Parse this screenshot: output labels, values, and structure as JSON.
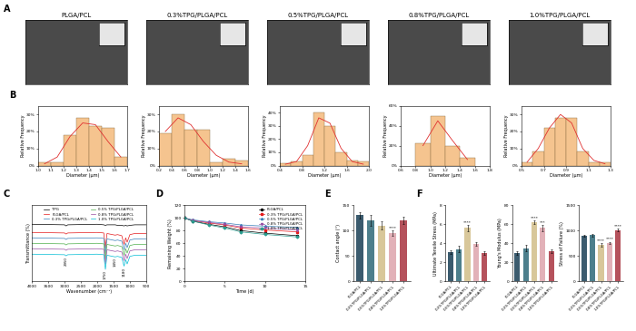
{
  "chart_data": [
    {
      "type": "image",
      "panel": "A",
      "title": "PLGA/PCL"
    },
    {
      "type": "image",
      "title": "0.3%TPG/PLGA/PCL"
    },
    {
      "type": "image",
      "title": "0.5%TPG/PLGA/PCL"
    },
    {
      "type": "image",
      "title": "0.8%TPG/PLGA/PCL"
    },
    {
      "type": "image",
      "title": "1.0%TPG/PLGA/PCL"
    },
    {
      "type": "histogram",
      "panel": "B",
      "x_label": "Diameter (μm)",
      "y_label": "Relative Frequency",
      "color": "#f5c48f",
      "bins": [
        1.0,
        1.1,
        1.2,
        1.3,
        1.4,
        1.5,
        1.6,
        1.7
      ],
      "counts": [
        2,
        2,
        18,
        28,
        23,
        22,
        5
      ],
      "fit": [
        1,
        5,
        17,
        25,
        24,
        14,
        5
      ],
      "xlim": [
        1.0,
        1.7
      ],
      "xticks": [
        1.0,
        1.1,
        1.2,
        1.3,
        1.4,
        1.5,
        1.6,
        1.7
      ],
      "ylim": [
        0,
        35
      ],
      "yticks": [
        {
          "value": 0,
          "label": "0%"
        },
        {
          "value": 10,
          "label": "10%"
        },
        {
          "value": 20,
          "label": "20%"
        },
        {
          "value": 30,
          "label": "30%"
        }
      ],
      "grid": false
    },
    {
      "type": "histogram",
      "x_label": "Diameter (μm)",
      "y_label": "Relative Frequency",
      "color": "#f5c48f",
      "bins": [
        0.2,
        0.4,
        0.6,
        0.8,
        1.0,
        1.2,
        1.4,
        1.6
      ],
      "counts": [
        19,
        30,
        21,
        21,
        2,
        4,
        3
      ],
      "fit": [
        20,
        28,
        24,
        14,
        6,
        2,
        1
      ],
      "xlim": [
        0.2,
        1.6
      ],
      "xticks": [
        0.2,
        0.4,
        0.6,
        0.8,
        1.0,
        1.2,
        1.4,
        1.6
      ],
      "ylim": [
        0,
        35
      ],
      "yticks": [
        {
          "value": 0,
          "label": "0%"
        },
        {
          "value": 10,
          "label": "10%"
        },
        {
          "value": 20,
          "label": "20%"
        },
        {
          "value": 30,
          "label": "30%"
        }
      ],
      "grid": false
    },
    {
      "type": "histogram",
      "x_label": "Diameter (μm)",
      "y_label": "Relative Frequency",
      "color": "#f5c48f",
      "bins": [
        0.4,
        0.6,
        0.8,
        1.0,
        1.2,
        1.4,
        1.6,
        1.8,
        2.0
      ],
      "counts": [
        2,
        3,
        8,
        40,
        30,
        10,
        4,
        3
      ],
      "fit": [
        1,
        3,
        15,
        36,
        32,
        13,
        3,
        1
      ],
      "xlim": [
        0.4,
        2.0
      ],
      "xticks": [
        0.4,
        0.8,
        1.2,
        1.6,
        2.0
      ],
      "ylim": [
        0,
        45
      ],
      "yticks": [
        {
          "value": 0,
          "label": "0%"
        },
        {
          "value": 10,
          "label": "10%"
        },
        {
          "value": 20,
          "label": "20%"
        },
        {
          "value": 30,
          "label": "30%"
        },
        {
          "value": 40,
          "label": "40%"
        }
      ],
      "grid": false
    },
    {
      "type": "histogram",
      "x_label": "Diameter (μm)",
      "y_label": "Relative Frequency",
      "color": "#f5c48f",
      "bins": [
        0.8,
        1.0,
        1.2,
        1.4,
        1.6
      ],
      "counts": [
        22,
        50,
        20,
        8
      ],
      "fit": [
        20,
        45,
        25,
        6
      ],
      "xlim": [
        0.6,
        1.8
      ],
      "xticks": [
        0.6,
        0.8,
        1.0,
        1.2,
        1.4,
        1.6,
        1.8
      ],
      "ylim": [
        0,
        60
      ],
      "yticks": [
        {
          "value": 0,
          "label": "0%"
        },
        {
          "value": 20,
          "label": "20%"
        },
        {
          "value": 40,
          "label": "40%"
        },
        {
          "value": 60,
          "label": "60%"
        }
      ],
      "grid": false
    },
    {
      "type": "histogram",
      "x_label": "Diameter (μm)",
      "y_label": "Relative Frequency",
      "color": "#f5c48f",
      "bins": [
        0.5,
        0.6,
        0.7,
        0.8,
        0.9,
        1.0,
        1.1,
        1.2,
        1.3
      ],
      "counts": [
        2,
        8,
        22,
        28,
        28,
        8,
        2,
        2
      ],
      "fit": [
        2,
        10,
        22,
        30,
        25,
        10,
        3,
        1
      ],
      "xlim": [
        0.5,
        1.3
      ],
      "xticks": [
        0.5,
        0.7,
        0.9,
        1.1,
        1.3
      ],
      "ylim": [
        0,
        35
      ],
      "yticks": [
        {
          "value": 0,
          "label": "0%"
        },
        {
          "value": 10,
          "label": "10%"
        },
        {
          "value": 20,
          "label": "20%"
        },
        {
          "value": 30,
          "label": "30%"
        }
      ],
      "grid": false
    },
    {
      "type": "line",
      "panel": "C",
      "x_label": "Wavenumber (cm⁻¹)",
      "y_label": "Transmittance (%)",
      "x": [
        4000,
        3000,
        2950,
        2900,
        2000,
        1800,
        1750,
        1700,
        1450,
        1380,
        1250,
        1180,
        1130,
        1085,
        1000,
        850,
        700,
        500
      ],
      "series": [
        {
          "name": "TPG",
          "color": "#000000",
          "values": [
            105,
            104,
            102,
            104,
            105,
            104,
            103,
            104,
            104,
            103,
            103,
            102,
            103,
            102,
            103,
            104,
            104,
            104
          ]
        },
        {
          "name": "PLGA/PCL",
          "color": "#e41a1c",
          "values": [
            90,
            89,
            87,
            89,
            90,
            89,
            62,
            88,
            85,
            86,
            84,
            68,
            80,
            72,
            86,
            88,
            88,
            88
          ]
        },
        {
          "name": "0.3% TPG/PLGA/PCL",
          "color": "#377eb8",
          "values": [
            80,
            79,
            77,
            79,
            80,
            79,
            52,
            78,
            75,
            76,
            74,
            58,
            70,
            62,
            76,
            78,
            78,
            78
          ]
        },
        {
          "name": "0.5% TPG/PLGA/PCL",
          "color": "#4daf4a",
          "values": [
            70,
            69,
            67,
            69,
            70,
            69,
            42,
            68,
            65,
            66,
            64,
            48,
            60,
            52,
            66,
            68,
            68,
            68
          ]
        },
        {
          "name": "0.8% TPG/PLGA/PCL",
          "color": "#984ea3",
          "values": [
            60,
            59,
            57,
            59,
            60,
            59,
            32,
            58,
            55,
            56,
            54,
            38,
            50,
            42,
            56,
            58,
            58,
            58
          ]
        },
        {
          "name": "1.0% TPG/PLGA/PCL",
          "color": "#00bcd4",
          "values": [
            50,
            49,
            47,
            49,
            50,
            49,
            22,
            48,
            45,
            46,
            44,
            28,
            40,
            32,
            46,
            48,
            48,
            48
          ]
        }
      ],
      "annotations": [
        {
          "text": "2950",
          "x": 2950
        },
        {
          "text": "1750",
          "x": 1750
        },
        {
          "text": "1450",
          "x": 1450
        },
        {
          "text": "1180",
          "x": 1180
        }
      ],
      "xlim": [
        4000,
        500
      ],
      "xticks": [
        4000,
        3500,
        3000,
        2500,
        2000,
        1500,
        1000,
        500
      ],
      "ylim": [
        0,
        140
      ],
      "tick_labels": "x",
      "legend": "upper center",
      "grid": false
    },
    {
      "type": "line",
      "panel": "D",
      "x_label": "Time (d)",
      "y_label": "Remaining Weight (%)",
      "x": [
        0,
        1,
        3,
        5,
        7,
        10,
        14
      ],
      "series": [
        {
          "name": "PLGA/PCL",
          "color": "#000000",
          "marker": "circle",
          "values": [
            100,
            95,
            90,
            86,
            80,
            76,
            72
          ]
        },
        {
          "name": "0.3% TPG/PLGA/PCL",
          "color": "#e41a1c",
          "marker": "square",
          "values": [
            100,
            96,
            92,
            89,
            84,
            81,
            78
          ]
        },
        {
          "name": "0.5% TPG/PLGA/PCL",
          "color": "#377eb8",
          "marker": "triangle_up",
          "values": [
            100,
            97,
            94,
            92,
            89,
            87,
            85
          ]
        },
        {
          "name": "0.8% TPG/PLGA/PCL",
          "color": "#984ea3",
          "marker": "triangle_down",
          "values": [
            100,
            96,
            93,
            90,
            86,
            84,
            81
          ]
        },
        {
          "name": "1.0% TPG/PLGA/PCL",
          "color": "#2a9d8f",
          "marker": "diamond",
          "values": [
            100,
            95,
            89,
            84,
            78,
            74,
            70
          ]
        }
      ],
      "xlim": [
        0,
        15
      ],
      "xticks": [
        0,
        5,
        10,
        15
      ],
      "ylim": [
        0,
        120
      ],
      "yticks": [
        0,
        20,
        40,
        60,
        80,
        100,
        120
      ],
      "legend": "upper right",
      "grid": false
    },
    {
      "type": "bar",
      "panel": "E",
      "y_label": "Contact angle (°)",
      "categories": [
        "PLGA/PCL",
        "0.3%TPG/PLGA/PCL",
        "0.5%TPG/PLGA/PCL",
        "0.8%TPG/PLGA/PCL",
        "1.0%TPG/PLGA/PCL"
      ],
      "values": [
        130,
        120,
        110,
        95,
        120
      ],
      "errors": [
        6,
        10,
        8,
        5,
        7
      ],
      "significance": [
        null,
        null,
        null,
        "****",
        null
      ],
      "colors": [
        "#3b5b6e",
        "#4d7f8c",
        "#d8c79a",
        "#e2b1b8",
        "#b5525c"
      ],
      "ylim": [
        0,
        150
      ],
      "yticks": [
        0,
        50,
        100,
        150
      ],
      "grid": false
    },
    {
      "type": "bar",
      "panel": "F",
      "y_label": "Ultimate Tensile Stress (MPa)",
      "categories": [
        "PLGA/PCL",
        "0.3%TPG/PLGA/PCL",
        "0.5%TPG/PLGA/PCL",
        "0.8%TPG/PLGA/PCL",
        "1.0%TPG/PLGA/PCL"
      ],
      "values": [
        3.1,
        3.4,
        5.6,
        3.9,
        3.0
      ],
      "errors": [
        0.2,
        0.3,
        0.3,
        0.2,
        0.2
      ],
      "significance": [
        null,
        null,
        "****",
        null,
        null
      ],
      "colors": [
        "#3b5b6e",
        "#4d7f8c",
        "#d8c79a",
        "#e2b1b8",
        "#b5525c"
      ],
      "ylim": [
        0,
        8
      ],
      "yticks": [
        0,
        2,
        4,
        6,
        8
      ],
      "grid": false
    },
    {
      "type": "bar",
      "y_label": "Young's Modulus (MPa)",
      "categories": [
        "PLGA/PCL",
        "0.3%TPG/PLGA/PCL",
        "0.5%TPG/PLGA/PCL",
        "0.8%TPG/PLGA/PCL",
        "1.0%TPG/PLGA/PCL"
      ],
      "values": [
        30,
        35,
        62,
        56,
        32
      ],
      "errors": [
        2,
        3,
        2,
        3,
        2
      ],
      "significance": [
        null,
        null,
        "****",
        "***",
        null
      ],
      "colors": [
        "#3b5b6e",
        "#4d7f8c",
        "#d8c79a",
        "#e2b1b8",
        "#b5525c"
      ],
      "ylim": [
        0,
        80
      ],
      "yticks": [
        0,
        20,
        40,
        60,
        80
      ],
      "grid": false
    },
    {
      "type": "bar",
      "y_label": "Stress of Failure (%)",
      "categories": [
        "PLGA/PCL",
        "0.3%TPG/PLGA/PCL",
        "0.5%TPG/PLGA/PCL",
        "0.8%TPG/PLGA/PCL",
        "1.0%TPG/PLGA/PCL"
      ],
      "values": [
        900,
        910,
        720,
        760,
        1010
      ],
      "errors": [
        20,
        25,
        30,
        20,
        25
      ],
      "significance": [
        null,
        null,
        "****",
        "****",
        "****"
      ],
      "colors": [
        "#3b5b6e",
        "#4d7f8c",
        "#d8c79a",
        "#e2b1b8",
        "#b5525c"
      ],
      "ylim": [
        0,
        1500
      ],
      "yticks": [
        0,
        500,
        1000,
        1500
      ],
      "grid": false
    }
  ]
}
